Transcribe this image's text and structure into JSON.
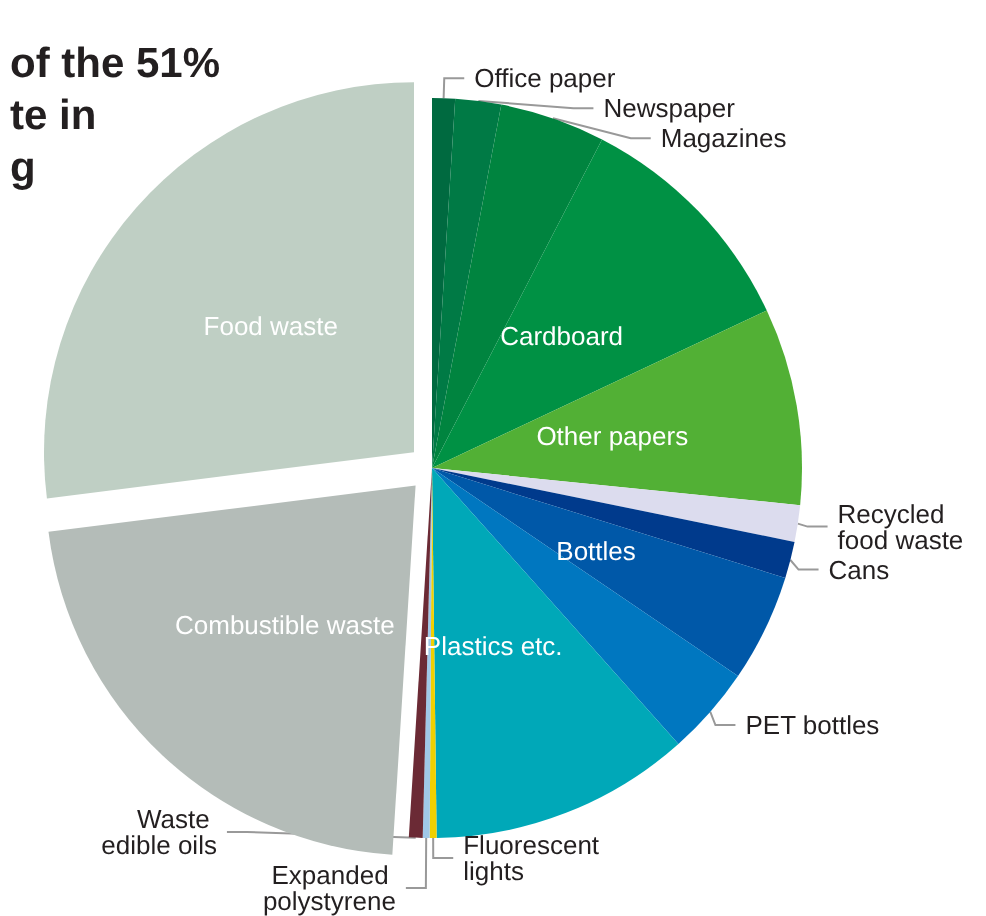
{
  "chart_data": {
    "type": "pie",
    "title": "of the 51%\nte in\ng",
    "categories": [
      "Office paper",
      "Newspaper",
      "Magazines",
      "Cardboard",
      "Other papers",
      "Recycled food waste",
      "Cans",
      "Bottles",
      "PET bottles",
      "Plastics etc.",
      "Fluorescent lights",
      "Expanded polystyrene",
      "Waste edible oils",
      "Combustible waste",
      "Food waste"
    ],
    "values": [
      1.0,
      2.0,
      4.6,
      10.4,
      8.6,
      1.6,
      1.6,
      4.7,
      3.9,
      11.4,
      0.3,
      0.3,
      0.6,
      22,
      27
    ],
    "colors": [
      "#006a40",
      "#007a45",
      "#00843f",
      "#009144",
      "#52b035",
      "#dcdcee",
      "#003a8c",
      "#0058a8",
      "#0077c0",
      "#00a8b8",
      "#f0d000",
      "#a0c8e8",
      "#6b2a35",
      "#b4bcb8",
      "#bfcfc4"
    ]
  }
}
